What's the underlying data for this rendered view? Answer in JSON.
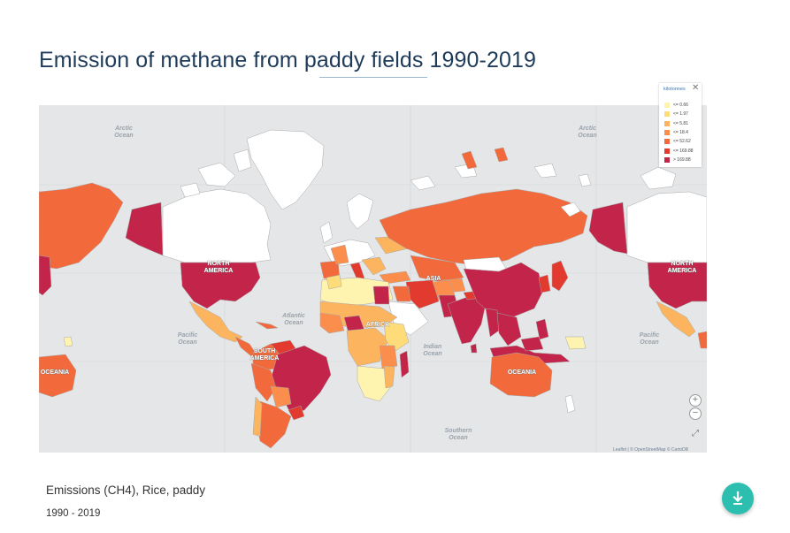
{
  "title": "Emission of methane from paddy fields 1990-2019",
  "legend": {
    "title": "kilotonnes",
    "close_glyph": "✕",
    "items": [
      {
        "label": "<= 0.66",
        "color": "#fff3b0"
      },
      {
        "label": "<= 1.97",
        "color": "#fedc7a"
      },
      {
        "label": "<= 5.81",
        "color": "#fdb45f"
      },
      {
        "label": "<= 18.4",
        "color": "#fb8e4c"
      },
      {
        "label": "<= 52.62",
        "color": "#f26a3b"
      },
      {
        "label": "<= 169.88",
        "color": "#e23a2e"
      },
      {
        "label": "> 169.88",
        "color": "#c2244a"
      }
    ]
  },
  "map": {
    "ocean_labels": [
      {
        "id": "arctic-left",
        "line1": "Arctic",
        "line2": "Ocean"
      },
      {
        "id": "arctic-right",
        "line1": "Arctic",
        "line2": "Ocean"
      },
      {
        "id": "pacific-left",
        "line1": "Pacific",
        "line2": "Ocean"
      },
      {
        "id": "atlantic",
        "line1": "Atlantic",
        "line2": "Ocean"
      },
      {
        "id": "indian",
        "line1": "Indian",
        "line2": "Ocean"
      },
      {
        "id": "pacific-right",
        "line1": "Pacific",
        "line2": "Ocean"
      },
      {
        "id": "southern",
        "line1": "Southern",
        "line2": "Ocean"
      }
    ],
    "continent_labels": [
      {
        "id": "north-america-left",
        "line1": "NORTH",
        "line2": "AMERICA"
      },
      {
        "id": "north-america-right",
        "line1": "NORTH",
        "line2": "AMERICA"
      },
      {
        "id": "south-america",
        "line1": "SOUTH",
        "line2": "AMERICA"
      },
      {
        "id": "africa",
        "line1": "AFRICA",
        "line2": ""
      },
      {
        "id": "asia",
        "line1": "ASIA",
        "line2": ""
      },
      {
        "id": "oceania-left",
        "line1": "OCEANIA",
        "line2": ""
      },
      {
        "id": "oceania-right",
        "line1": "OCEANIA",
        "line2": ""
      }
    ],
    "zoom_in": "+",
    "zoom_out": "−",
    "fullscreen": "⤢",
    "attribution": "Leaflet | © OpenStreetMap © CartoDB"
  },
  "footer": {
    "indicator": "Emissions (CH4), Rice, paddy",
    "years": "1990 - 2019"
  },
  "download_icon": "download-icon"
}
